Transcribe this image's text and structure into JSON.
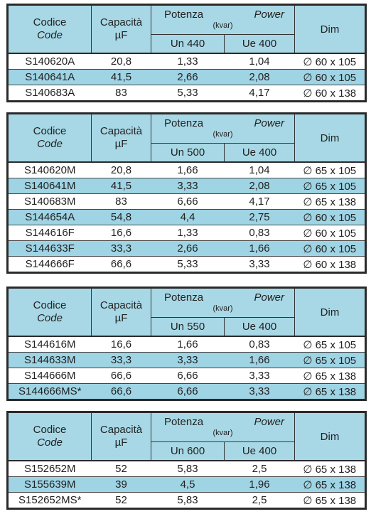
{
  "tables": [
    {
      "header": {
        "codice": "Codice",
        "code": "Code",
        "capacita": "Capacità",
        "unit": "µF",
        "potenza": "Potenza",
        "kvar": "(kvar)",
        "power": "Power",
        "un": "Un 440",
        "ue": "Ue 400",
        "dim": "Dim"
      },
      "rows": [
        [
          "S140620A",
          "20,8",
          "1,33",
          "1,04",
          "∅ 60 x 105"
        ],
        [
          "S140641A",
          "41,5",
          "2,66",
          "2,08",
          "∅ 60 x 105"
        ],
        [
          "S140683A",
          "83",
          "5,33",
          "4,17",
          "∅ 60 x 138"
        ]
      ]
    },
    {
      "header": {
        "codice": "Codice",
        "code": "Code",
        "capacita": "Capacità",
        "unit": "µF",
        "potenza": "Potenza",
        "kvar": "(kvar)",
        "power": "Power",
        "un": "Un 500",
        "ue": "Ue 400",
        "dim": "Dim"
      },
      "rows": [
        [
          "S140620M",
          "20,8",
          "1,66",
          "1,04",
          "∅ 65 x 105"
        ],
        [
          "S140641M",
          "41,5",
          "3,33",
          "2,08",
          "∅ 65 x 105"
        ],
        [
          "S140683M",
          "83",
          "6,66",
          "4,17",
          "∅ 65 x 138"
        ],
        [
          "S144654A",
          "54,8",
          "4,4",
          "2,75",
          "∅ 60 x 105"
        ],
        [
          "S144616F",
          "16,6",
          "1,33",
          "0,83",
          "∅ 60 x 105"
        ],
        [
          "S144633F",
          "33,3",
          "2,66",
          "1,66",
          "∅ 60 x 105"
        ],
        [
          "S144666F",
          "66,6",
          "5,33",
          "3,33",
          "∅ 60 x 138"
        ]
      ]
    },
    {
      "header": {
        "codice": "Codice",
        "code": "Code",
        "capacita": "Capacità",
        "unit": "µF",
        "potenza": "Potenza",
        "kvar": "(kvar)",
        "power": "Power",
        "un": "Un 550",
        "ue": "Ue 400",
        "dim": "Dim"
      },
      "rows": [
        [
          "S144616M",
          "16,6",
          "1,66",
          "0,83",
          "∅ 65 x 105"
        ],
        [
          "S144633M",
          "33,3",
          "3,33",
          "1,66",
          "∅ 65 x 105"
        ],
        [
          "S144666M",
          "66,6",
          "6,66",
          "3,33",
          "∅ 65 x 138"
        ],
        [
          "S144666MS*",
          "66,6",
          "6,66",
          "3,33",
          "∅ 65 x 138"
        ]
      ]
    },
    {
      "header": {
        "codice": "Codice",
        "code": "Code",
        "capacita": "Capacità",
        "unit": "µF",
        "potenza": "Potenza",
        "kvar": "(kvar)",
        "power": "Power",
        "un": "Un 600",
        "ue": "Ue 400",
        "dim": "Dim"
      },
      "rows": [
        [
          "S152652M",
          "52",
          "5,83",
          "2,5",
          "∅ 65 x 138"
        ],
        [
          "S155639M",
          "39",
          "4,5",
          "1,96",
          "∅ 65 x 138"
        ],
        [
          "S152652MS*",
          "52",
          "5,83",
          "2,5",
          "∅ 65 x 138"
        ]
      ]
    }
  ]
}
